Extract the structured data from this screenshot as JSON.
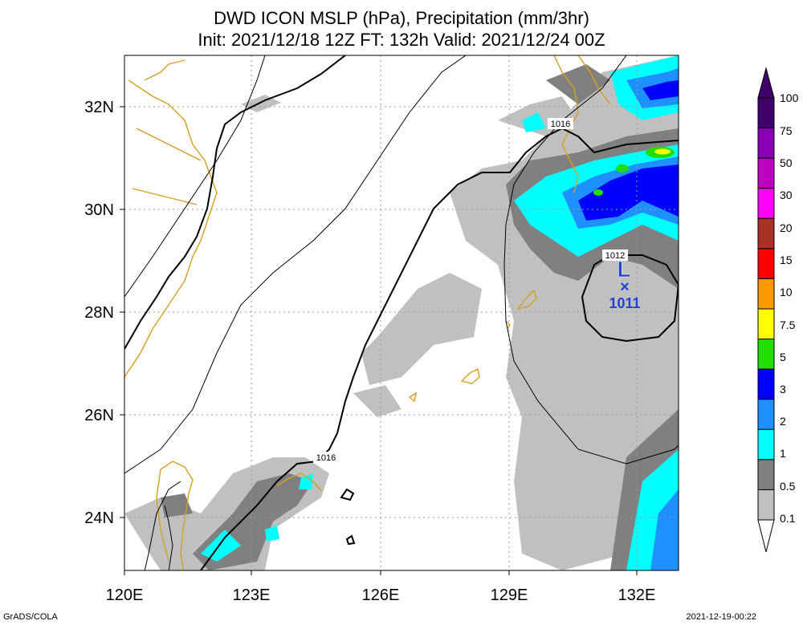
{
  "title_line1": "DWD ICON MSLP (hPa), Precipitation (mm/3hr)",
  "title_line2": "Init: 2021/12/18 12Z  FT: 132h  Valid: 2021/12/24 00Z",
  "map": {
    "lon_ticks": [
      "120E",
      "123E",
      "126E",
      "129E",
      "132E"
    ],
    "lat_ticks": [
      "32N",
      "30N",
      "28N",
      "26N",
      "24N"
    ],
    "isobar_labels": [
      "1016",
      "1016",
      "1012"
    ],
    "low": {
      "symbol": "L",
      "marker": "×",
      "pressure": "1011"
    }
  },
  "colorbar": {
    "labels": [
      "100",
      "75",
      "50",
      "30",
      "20",
      "15",
      "10",
      "7.5",
      "5",
      "3",
      "2",
      "1",
      "0.5",
      "0.1"
    ],
    "colors": [
      "#40006a",
      "#8a00b8",
      "#c000c0",
      "#ff00ff",
      "#a83228",
      "#ff0000",
      "#ff9900",
      "#ffff00",
      "#22dd00",
      "#0000ff",
      "#1e90ff",
      "#00ffff",
      "#808080",
      "#c0c0c0"
    ]
  },
  "footer_left": "GrADS/COLA",
  "footer_right": "2021-12-19-00:22"
}
